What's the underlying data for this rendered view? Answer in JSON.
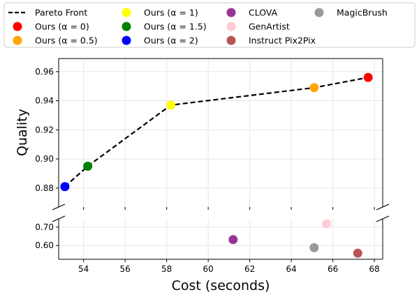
{
  "chart_data": {
    "type": "scatter",
    "xlabel": "Cost (seconds)",
    "ylabel": "Quality",
    "xlim": [
      52.8,
      68.4
    ],
    "x_ticks": [
      54,
      56,
      58,
      60,
      62,
      64,
      66,
      68
    ],
    "broken_y_axis": true,
    "upper_panel": {
      "ylim": [
        0.867,
        0.969
      ],
      "y_ticks": [
        0.88,
        0.9,
        0.92,
        0.94,
        0.96
      ]
    },
    "lower_panel": {
      "ylim": [
        0.525,
        0.745
      ],
      "y_ticks": [
        0.6,
        0.7
      ]
    },
    "grid": true,
    "legend_position": "top",
    "pareto_front": {
      "name": "Pareto Front",
      "style": "dashed",
      "color": "#000000",
      "points": [
        [
          53.1,
          0.881
        ],
        [
          54.2,
          0.895
        ],
        [
          58.2,
          0.937
        ],
        [
          65.1,
          0.949
        ],
        [
          67.7,
          0.956
        ]
      ]
    },
    "series": [
      {
        "name": "Ours (α = 0)",
        "color": "#ff0000",
        "x": 67.7,
        "y": 0.956
      },
      {
        "name": "Ours (α = 0.5)",
        "color": "#ffa500",
        "x": 65.1,
        "y": 0.949
      },
      {
        "name": "Ours (α = 1)",
        "color": "#ffff00",
        "x": 58.2,
        "y": 0.937
      },
      {
        "name": "Ours (α = 1.5)",
        "color": "#008000",
        "x": 54.2,
        "y": 0.895
      },
      {
        "name": "Ours (α = 2)",
        "color": "#0000ff",
        "x": 53.1,
        "y": 0.881
      },
      {
        "name": "CLOVA",
        "color": "#800080",
        "x": 61.2,
        "y": 0.632
      },
      {
        "name": "GenArtist",
        "color": "#ffc0cb",
        "x": 65.7,
        "y": 0.718
      },
      {
        "name": "Instruct Pix2Pix",
        "color": "#a52a2a",
        "x": 67.2,
        "y": 0.558
      },
      {
        "name": "MagicBrush",
        "color": "#808080",
        "x": 65.1,
        "y": 0.588
      }
    ]
  }
}
